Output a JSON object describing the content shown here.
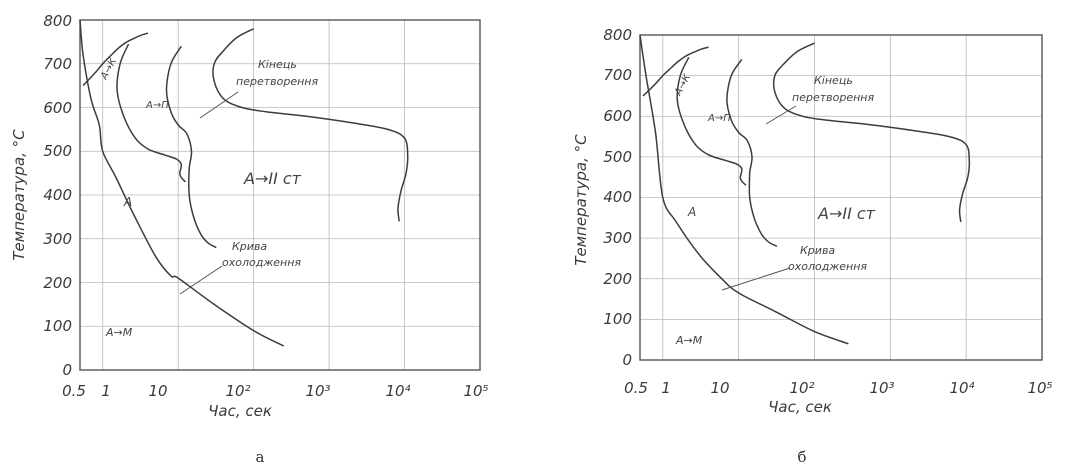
{
  "chart_data": [
    {
      "type": "line",
      "panel_label": "а",
      "xlabel": "Час, сек",
      "ylabel": "Температура, °С",
      "x_scale": "log",
      "xlim": [
        0.5,
        100000
      ],
      "ylim": [
        0,
        800
      ],
      "x_ticks": [
        {
          "value": 0.5,
          "label": "0.5"
        },
        {
          "value": 1,
          "label": "1"
        },
        {
          "value": 10,
          "label": "10"
        },
        {
          "value": 100,
          "label": "10²"
        },
        {
          "value": 1000,
          "label": "10³"
        },
        {
          "value": 10000,
          "label": "10⁴"
        },
        {
          "value": 100000,
          "label": "10⁵"
        }
      ],
      "y_ticks": [
        0,
        100,
        200,
        300,
        400,
        500,
        600,
        700,
        800
      ],
      "grid": true,
      "series": [
        {
          "x": [
            0.55,
            0.8,
            1.0,
            1.3,
            1.6,
            2.0,
            2.6,
            3.2,
            4.0
          ],
          "y": [
            650,
            680,
            700,
            720,
            735,
            748,
            758,
            765,
            770
          ]
        },
        {
          "x": [
            2.2,
            1.7,
            1.55,
            1.9,
            2.7,
            4.0,
            6.5,
            9.5,
            11.0,
            10.5,
            11.0,
            12.5
          ],
          "y": [
            745,
            700,
            640,
            580,
            530,
            505,
            492,
            482,
            470,
            450,
            440,
            430
          ]
        },
        {
          "x": [
            11.0,
            8.0,
            7.0,
            8.0,
            10.0,
            13.0,
            15.0,
            14.0,
            14.0,
            16.0,
            20.0,
            25.0,
            32.0
          ],
          "y": [
            740,
            700,
            640,
            590,
            560,
            540,
            500,
            460,
            400,
            350,
            310,
            290,
            280
          ]
        },
        {
          "x": [
            100.0,
            60.0,
            40.0,
            30.0,
            30.0,
            40.0,
            70.0,
            150.0,
            500.0,
            2000.0,
            6000.0,
            10000.0,
            11000.0,
            10500.0,
            9000.0,
            8200.0,
            8500.0
          ],
          "y": [
            780,
            760,
            730,
            700,
            660,
            620,
            600,
            590,
            580,
            565,
            550,
            530,
            490,
            450,
            410,
            370,
            340
          ]
        },
        {
          "x": [
            0.5,
            0.55,
            0.7,
            0.9,
            1.0,
            1.5,
            2.5,
            5.0,
            8.0,
            10.0,
            30.0,
            100.0,
            250.0
          ],
          "y": [
            800,
            720,
            620,
            560,
            500,
            440,
            360,
            260,
            215,
            210,
            150,
            90,
            55
          ]
        }
      ],
      "annotations": [
        "А→К",
        "А→П",
        "Кінець перетворення",
        "А→II ст",
        "А",
        "Крива охолодження",
        "А→М"
      ]
    },
    {
      "type": "line",
      "panel_label": "б",
      "xlabel": "Час, сек",
      "ylabel": "Температура, °С",
      "x_scale": "log",
      "xlim": [
        0.5,
        100000
      ],
      "ylim": [
        0,
        800
      ],
      "x_ticks": [
        {
          "value": 0.5,
          "label": "0.5"
        },
        {
          "value": 1,
          "label": "1"
        },
        {
          "value": 10,
          "label": "10"
        },
        {
          "value": 100,
          "label": "10²"
        },
        {
          "value": 1000,
          "label": "10³"
        },
        {
          "value": 10000,
          "label": "10⁴"
        },
        {
          "value": 100000,
          "label": "10⁵"
        }
      ],
      "y_ticks": [
        0,
        100,
        200,
        300,
        400,
        500,
        600,
        700,
        800
      ],
      "grid": true,
      "series": [
        {
          "x": [
            0.55,
            0.8,
            1.0,
            1.3,
            1.6,
            2.0,
            2.6,
            3.2,
            4.0
          ],
          "y": [
            650,
            680,
            700,
            720,
            735,
            748,
            758,
            765,
            770
          ]
        },
        {
          "x": [
            2.2,
            1.7,
            1.55,
            1.9,
            2.7,
            4.0,
            6.5,
            9.5,
            11.0,
            10.5,
            11.0,
            12.5
          ],
          "y": [
            745,
            700,
            640,
            580,
            530,
            505,
            492,
            482,
            470,
            450,
            440,
            430
          ]
        },
        {
          "x": [
            11.0,
            8.0,
            7.0,
            8.0,
            10.0,
            13.0,
            15.0,
            14.0,
            14.0,
            16.0,
            20.0,
            25.0,
            32.0
          ],
          "y": [
            740,
            700,
            640,
            590,
            560,
            540,
            500,
            460,
            400,
            350,
            310,
            290,
            280
          ]
        },
        {
          "x": [
            100.0,
            60.0,
            40.0,
            30.0,
            30.0,
            40.0,
            70.0,
            150.0,
            500.0,
            2000.0,
            6000.0,
            10000.0,
            11000.0,
            10500.0,
            9000.0,
            8200.0,
            8500.0
          ],
          "y": [
            780,
            760,
            730,
            700,
            660,
            620,
            600,
            590,
            580,
            565,
            550,
            530,
            490,
            450,
            410,
            370,
            340
          ]
        },
        {
          "x": [
            0.5,
            0.6,
            0.8,
            1.0,
            1.5,
            3.0,
            6.0,
            10.0,
            30.0,
            100.0,
            280.0
          ],
          "y": [
            800,
            700,
            560,
            400,
            340,
            260,
            200,
            165,
            120,
            70,
            40
          ]
        }
      ],
      "annotations": [
        "А→К",
        "А→П",
        "Кінець перетворення",
        "А→II ст",
        "А",
        "Крива охолодження",
        "А→М"
      ]
    }
  ]
}
